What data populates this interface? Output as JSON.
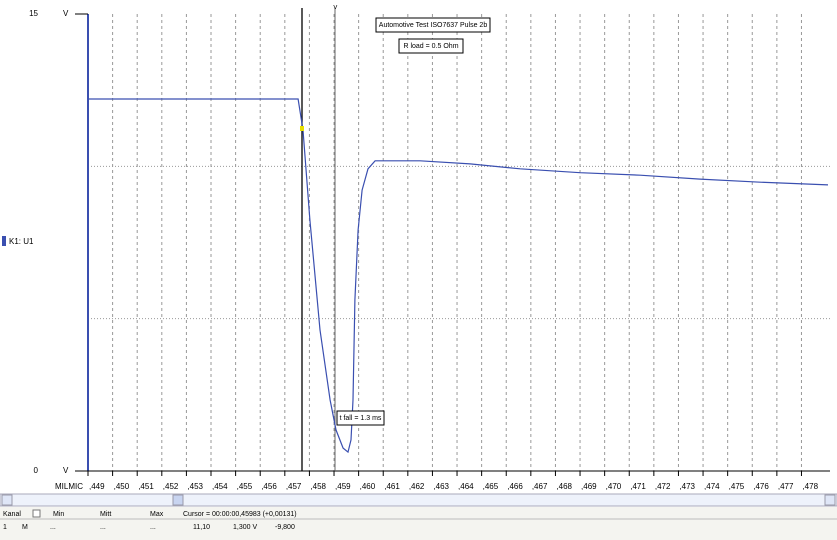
{
  "chart_data": {
    "type": "line",
    "x_label": "MILMIC",
    "y_unit": "V",
    "annotations": [
      "Automotive Test ISO7637 Pulse 2b",
      "R load = 0.5 Ohm",
      "t fall = 1.3 ms"
    ],
    "x": [
      0.449,
      0.45754,
      0.45774,
      0.45802,
      0.45843,
      0.45884,
      0.45908,
      0.45937,
      0.45957,
      0.45969,
      0.45977,
      0.45985,
      0.45998,
      0.46014,
      0.46038,
      0.46067,
      0.4625,
      0.46453,
      0.46656,
      0.469,
      0.47144,
      0.47388,
      0.47632,
      0.47908
    ],
    "series": [
      {
        "name": "K1: U1",
        "color": "#3a4fb0",
        "values": [
          12.21,
          12.21,
          11.19,
          8.24,
          4.63,
          2.33,
          1.35,
          0.75,
          0.62,
          1.02,
          2.33,
          5.61,
          7.91,
          9.22,
          9.92,
          10.18,
          10.18,
          10.08,
          9.92,
          9.79,
          9.71,
          9.58,
          9.48,
          9.39
        ]
      }
    ],
    "xlim": [
      0.449,
      0.47916
    ],
    "ylim": [
      0,
      15
    ],
    "yticks": [
      0,
      15
    ],
    "ygrid": [
      5,
      10
    ],
    "xticks": [
      {
        "value": 0.449,
        "label": ",449"
      },
      {
        "value": 0.45,
        "label": ",450"
      },
      {
        "value": 0.451,
        "label": ",451"
      },
      {
        "value": 0.452,
        "label": ",452"
      },
      {
        "value": 0.453,
        "label": ",453"
      },
      {
        "value": 0.454,
        "label": ",454"
      },
      {
        "value": 0.455,
        "label": ",455"
      },
      {
        "value": 0.456,
        "label": ",456"
      },
      {
        "value": 0.457,
        "label": ",457"
      },
      {
        "value": 0.458,
        "label": ",458"
      },
      {
        "value": 0.459,
        "label": ",459"
      },
      {
        "value": 0.46,
        "label": ",460"
      },
      {
        "value": 0.461,
        "label": ",461"
      },
      {
        "value": 0.462,
        "label": ",462"
      },
      {
        "value": 0.463,
        "label": ",463"
      },
      {
        "value": 0.464,
        "label": ",464"
      },
      {
        "value": 0.465,
        "label": ",465"
      },
      {
        "value": 0.466,
        "label": ",466"
      },
      {
        "value": 0.467,
        "label": ",467"
      },
      {
        "value": 0.468,
        "label": ",468"
      },
      {
        "value": 0.469,
        "label": ",469"
      },
      {
        "value": 0.47,
        "label": ",470"
      },
      {
        "value": 0.471,
        "label": ",471"
      },
      {
        "value": 0.472,
        "label": ",472"
      },
      {
        "value": 0.473,
        "label": ",473"
      },
      {
        "value": 0.474,
        "label": ",474"
      },
      {
        "value": 0.475,
        "label": ",475"
      },
      {
        "value": 0.476,
        "label": ",476"
      },
      {
        "value": 0.477,
        "label": ",477"
      },
      {
        "value": 0.478,
        "label": ",478"
      }
    ],
    "grid": true
  },
  "status": {
    "headers": [
      "Kanal",
      "Min",
      "Mitt",
      "Max",
      "Cursor = 00:00:00,45983 (+0,00131)"
    ],
    "row": [
      "1",
      "M",
      "...",
      "...",
      "...",
      "11,10",
      "1,300 V",
      "-9,800"
    ]
  }
}
